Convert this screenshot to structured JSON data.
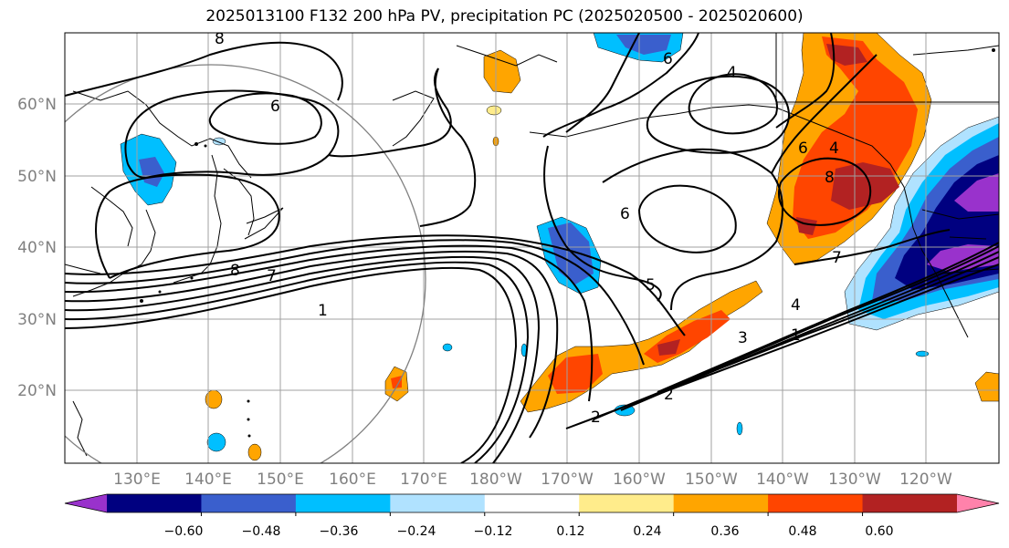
{
  "title": "2025013100 F132 200 hPa PV, precipitation PC (2025020500 - 2025020600)",
  "map": {
    "lat_labels": [
      "60°N",
      "50°N",
      "40°N",
      "30°N",
      "20°N"
    ],
    "lon_labels": [
      "130°E",
      "140°E",
      "150°E",
      "160°E",
      "170°E",
      "180°W",
      "170°W",
      "160°W",
      "150°W",
      "140°W",
      "130°W",
      "120°W"
    ],
    "contour_labels": [
      "8",
      "6",
      "7",
      "1",
      "8",
      "4",
      "2",
      "6",
      "5",
      "6",
      "8",
      "4",
      "7",
      "4",
      "1",
      "3",
      "2",
      "6"
    ]
  },
  "colorbar": {
    "ticks": [
      "−0.60",
      "−0.48",
      "−0.36",
      "−0.24",
      "−0.12",
      "0.12",
      "0.24",
      "0.36",
      "0.48",
      "0.60"
    ],
    "colors": [
      "#9932cc",
      "#000080",
      "#3a5fcd",
      "#00bfff",
      "#b0e2ff",
      "#ffffff",
      "#ffec8b",
      "#ffa500",
      "#ff4500",
      "#b22222",
      "#ff82ab"
    ]
  },
  "fill_colors": {
    "neg_light": "#b0e2ff",
    "neg_mid": "#00bfff",
    "neg_blue": "#3a5fcd",
    "neg_navy": "#000080",
    "neg_purple": "#9932cc",
    "pos_orange": "#ffa500",
    "pos_red": "#ff4500",
    "pos_dark": "#b22222"
  }
}
